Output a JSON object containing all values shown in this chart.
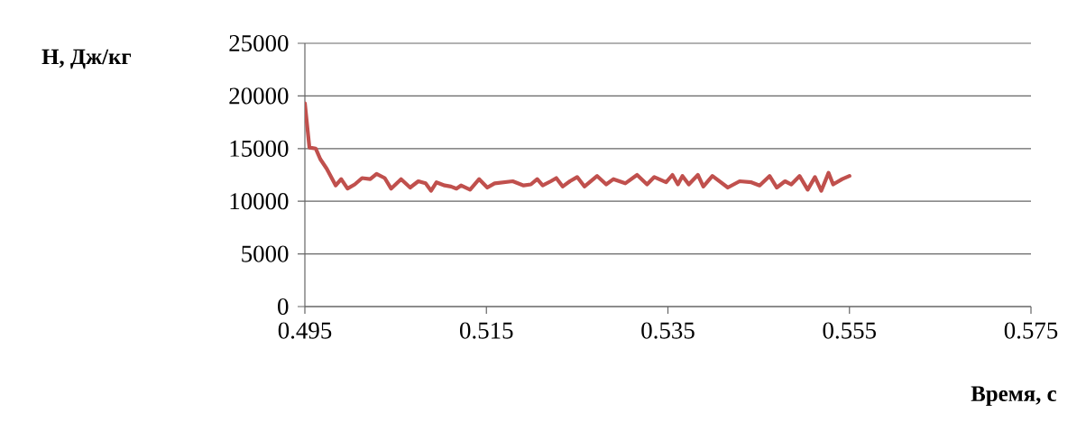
{
  "chart_data": {
    "type": "line",
    "xlabel": "Время, с",
    "ylabel": "H, Дж/кг",
    "xlim": [
      0.495,
      0.575
    ],
    "xticks": [
      0.495,
      0.515,
      0.535,
      0.555,
      0.575
    ],
    "ylim": [
      0,
      25000
    ],
    "yticks": [
      0,
      5000,
      10000,
      15000,
      20000,
      25000
    ],
    "grid": "y",
    "marker": "none",
    "line_style": "solid",
    "series": [
      {
        "color": "#c0504d",
        "x": [
          0.495,
          0.4955,
          0.4962,
          0.4967,
          0.4974,
          0.4984,
          0.499,
          0.4997,
          0.5005,
          0.5013,
          0.5022,
          0.5029,
          0.5038,
          0.5045,
          0.5056,
          0.5066,
          0.5075,
          0.5083,
          0.5089,
          0.5095,
          0.5104,
          0.5111,
          0.5117,
          0.5122,
          0.5132,
          0.5142,
          0.5151,
          0.5159,
          0.5179,
          0.5191,
          0.5199,
          0.5206,
          0.5212,
          0.5221,
          0.5227,
          0.5234,
          0.5242,
          0.525,
          0.5258,
          0.5272,
          0.5282,
          0.529,
          0.5303,
          0.5316,
          0.5327,
          0.5335,
          0.5348,
          0.5355,
          0.5361,
          0.5366,
          0.5373,
          0.5383,
          0.5389,
          0.5399,
          0.5416,
          0.5429,
          0.5442,
          0.5451,
          0.5462,
          0.547,
          0.5479,
          0.5486,
          0.5495,
          0.5504,
          0.5512,
          0.5519,
          0.5527,
          0.5532,
          0.5542,
          0.555
        ],
        "values": [
          19300,
          15100,
          15000,
          14000,
          13100,
          11500,
          12100,
          11200,
          11600,
          12200,
          12100,
          12600,
          12200,
          11200,
          12100,
          11300,
          11900,
          11700,
          11000,
          11800,
          11500,
          11400,
          11200,
          11500,
          11100,
          12100,
          11300,
          11700,
          11900,
          11500,
          11600,
          12100,
          11500,
          11900,
          12200,
          11400,
          11900,
          12300,
          11400,
          12400,
          11600,
          12100,
          11700,
          12500,
          11600,
          12300,
          11800,
          12500,
          11600,
          12400,
          11600,
          12500,
          11400,
          12400,
          11300,
          11900,
          11800,
          11500,
          12400,
          11300,
          11900,
          11600,
          12400,
          11100,
          12300,
          11000,
          12700,
          11600,
          12100,
          12400
        ]
      }
    ]
  }
}
